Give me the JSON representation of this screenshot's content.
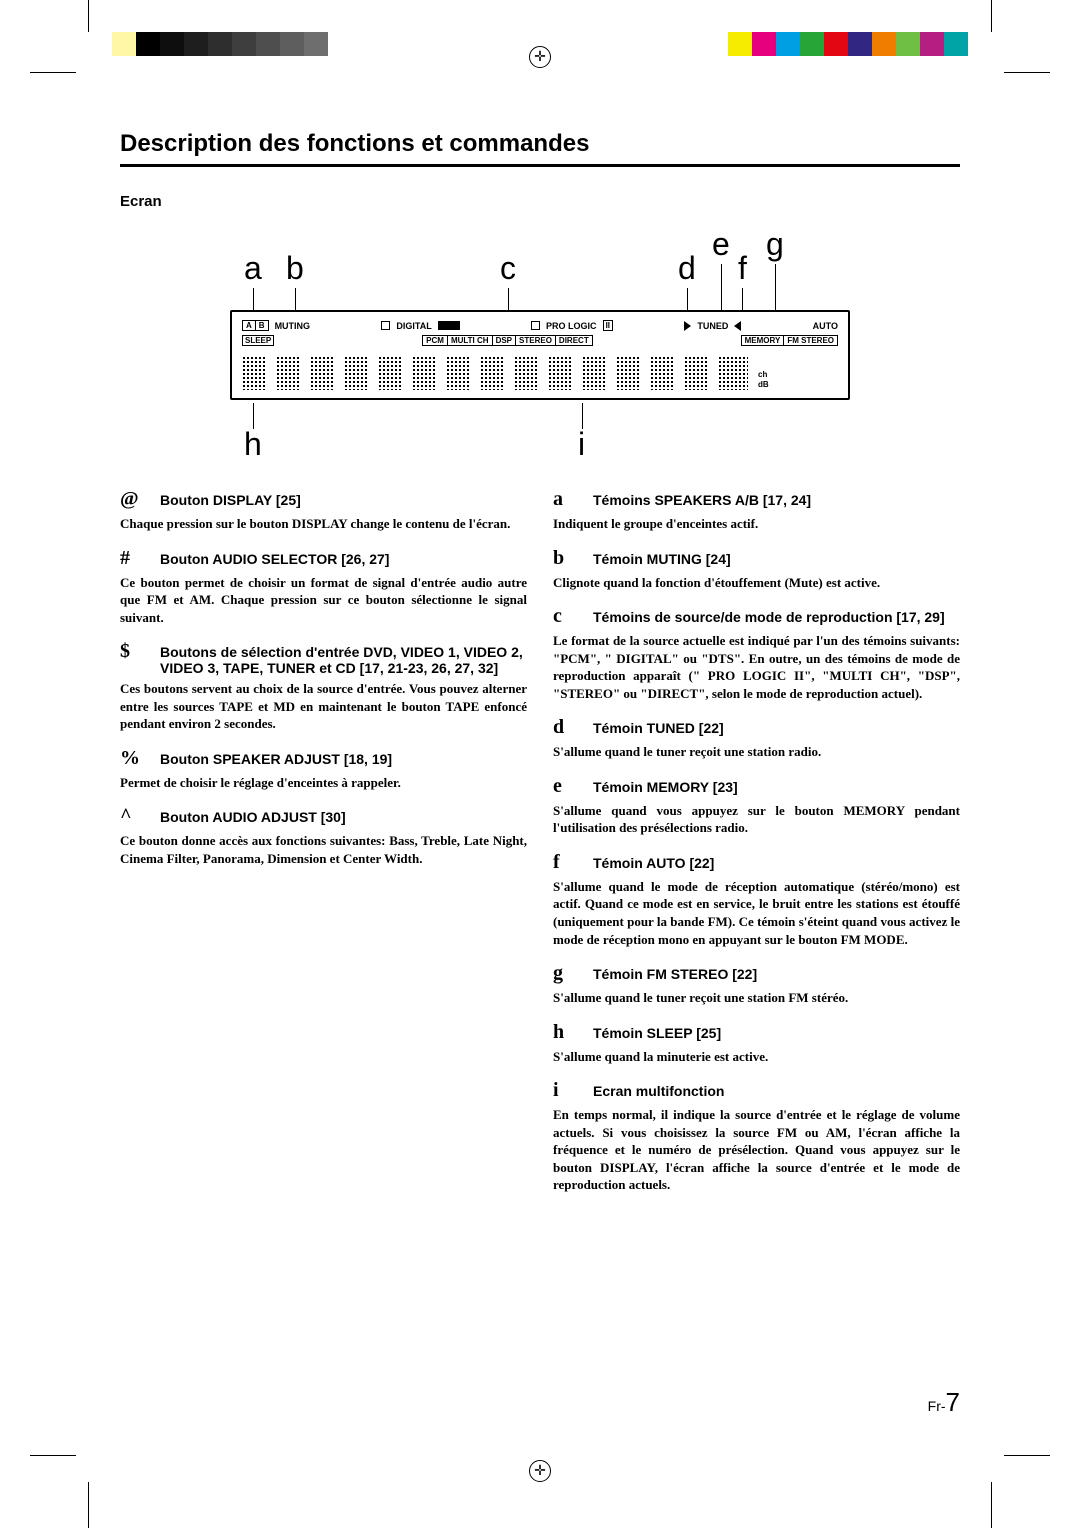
{
  "colorbar_left": [
    "#ffffff",
    "#fff6a6",
    "#000000",
    "#0e0e0e",
    "#1e1e1e",
    "#2e2e2e",
    "#3e3e3e",
    "#4e4e4e",
    "#5e5e5e",
    "#6e6e6e",
    "#ffffff",
    "#ffffff"
  ],
  "colorbar_right": [
    "#ffffff",
    "#f5ec00",
    "#e6007e",
    "#009fe3",
    "#27a537",
    "#e30613",
    "#312783",
    "#ef7d00",
    "#6fbf44",
    "#b51f82",
    "#00a4a7",
    "#ffffff"
  ],
  "page_title": "Description des fonctions et commandes",
  "page_subtitle": "Ecran",
  "callouts_top": {
    "a": "a",
    "b": "b",
    "c": "c",
    "d": "d",
    "e": "e",
    "f": "f",
    "g": "g"
  },
  "callouts_bottom": {
    "h": "h",
    "i": "i"
  },
  "display": {
    "row1": {
      "ab_a": "A",
      "ab_b": "B",
      "muting": "MUTING",
      "digital": "DIGITAL",
      "prologic": "PRO LOGIC",
      "pl2": "II",
      "tuned": "TUNED",
      "auto": "AUTO"
    },
    "row2": {
      "sleep": "SLEEP",
      "pcm": "PCM",
      "multich": "MULTI CH",
      "dsp": "DSP",
      "stereo": "STEREO",
      "direct": "DIRECT",
      "memory": "MEMORY",
      "fmstereo": "FM STEREO"
    },
    "ch": "ch",
    "db": "dB"
  },
  "left_col": [
    {
      "sym": "@",
      "label": "Bouton DISPLAY [25]",
      "body": "Chaque pression sur le bouton DISPLAY change le contenu de l'écran."
    },
    {
      "sym": "#",
      "label": "Bouton AUDIO SELECTOR [26, 27]",
      "body": "Ce bouton permet de choisir un format de signal d'entrée audio autre que FM et AM. Chaque pression sur ce bouton sélectionne le signal suivant."
    },
    {
      "sym": "$",
      "label": "Boutons de sélection d'entrée DVD, VIDEO 1, VIDEO 2, VIDEO 3, TAPE, TUNER et CD [17, 21-23, 26, 27, 32]",
      "body": "Ces boutons servent au choix de la source d'entrée. Vous pouvez alterner entre les sources TAPE et MD en maintenant le bouton TAPE enfoncé pendant environ 2 secondes."
    },
    {
      "sym": "%",
      "label": "Bouton SPEAKER ADJUST [18, 19]",
      "body": "Permet de choisir le réglage d'enceintes à rappeler."
    },
    {
      "sym": "^",
      "label": "Bouton AUDIO ADJUST [30]",
      "body": "Ce bouton donne accès aux fonctions suivantes: Bass, Treble, Late Night, Cinema Filter, Panorama, Dimension et Center Width."
    }
  ],
  "right_col": [
    {
      "sym": "a",
      "label": "Témoins SPEAKERS A/B [17, 24]",
      "body": "Indiquent le groupe d'enceintes actif."
    },
    {
      "sym": "b",
      "label": "Témoin MUTING [24]",
      "body": "Clignote quand la fonction d'étouffement (Mute) est active."
    },
    {
      "sym": "c",
      "label": "Témoins de source/de mode de reproduction [17, 29]",
      "body": "Le format de la source actuelle est indiqué par l'un des témoins suivants: \"PCM\", \" DIGITAL\" ou \"DTS\". En outre, un des témoins de mode de reproduction apparaît (\" PRO LOGIC II\", \"MULTI CH\", \"DSP\", \"STEREO\" ou \"DIRECT\", selon le mode de reproduction actuel)."
    },
    {
      "sym": "d",
      "label": "Témoin TUNED [22]",
      "body": "S'allume quand le tuner reçoit une station radio."
    },
    {
      "sym": "e",
      "label": "Témoin MEMORY [23]",
      "body": "S'allume quand vous appuyez sur le bouton MEMORY pendant l'utilisation des présélections radio."
    },
    {
      "sym": "f",
      "label": "Témoin AUTO [22]",
      "body": "S'allume quand le mode de réception automatique (stéréo/mono) est actif. Quand ce mode est en service, le bruit entre les stations est étouffé (uniquement pour la bande FM). Ce témoin s'éteint quand vous activez le mode de réception mono en appuyant sur le bouton FM MODE."
    },
    {
      "sym": "g",
      "label": "Témoin FM STEREO [22]",
      "body": "S'allume quand le tuner reçoit une station FM stéréo."
    },
    {
      "sym": "h",
      "label": "Témoin SLEEP [25]",
      "body": "S'allume quand la minuterie est active."
    },
    {
      "sym": "i",
      "label": "Ecran multifonction",
      "body": "En temps normal, il indique la source d'entrée et le réglage de volume actuels. Si vous choisissez la source FM ou AM, l'écran affiche la fréquence et le numéro de présélection. Quand vous appuyez sur le bouton DISPLAY, l'écran affiche la source d'entrée et le mode de reproduction actuels."
    }
  ],
  "page_number_prefix": "Fr-",
  "page_number": "7"
}
